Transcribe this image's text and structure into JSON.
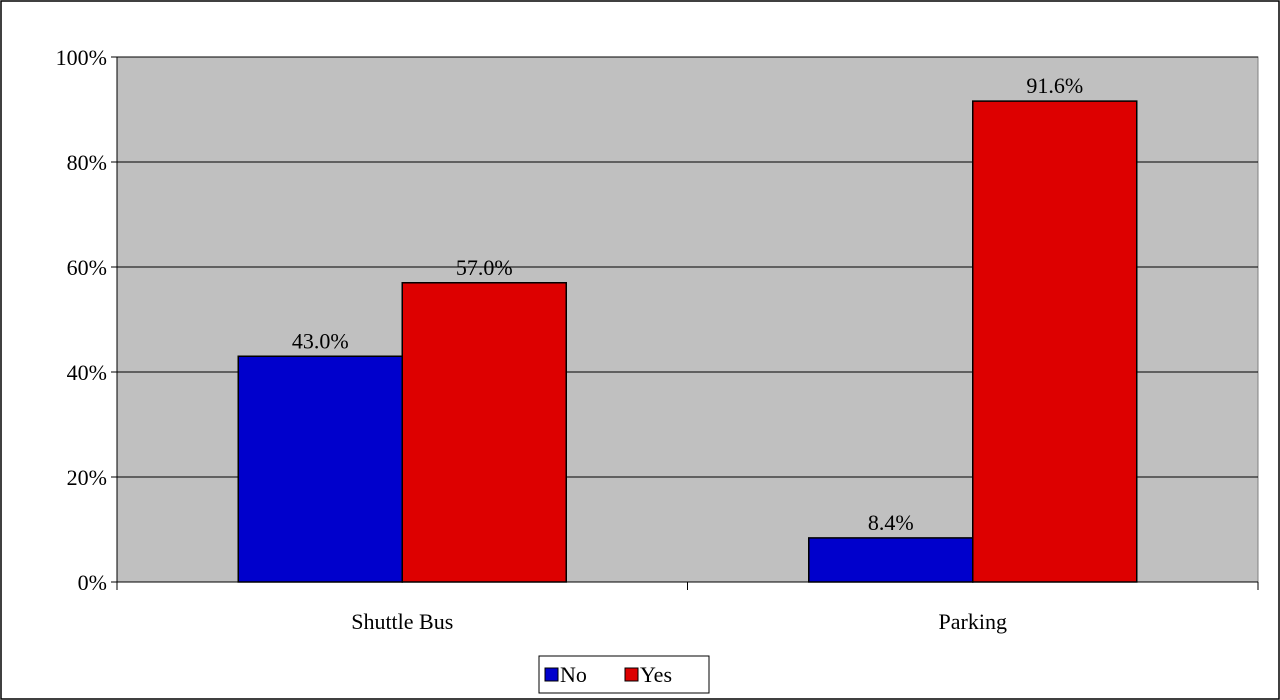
{
  "chart_data": {
    "type": "bar",
    "categories": [
      "Shuttle Bus",
      "Parking"
    ],
    "series": [
      {
        "name": "No",
        "values": [
          43.0,
          8.4
        ],
        "labels": [
          "43.0%",
          "8.4%"
        ],
        "color": "#0000CC"
      },
      {
        "name": "Yes",
        "values": [
          57.0,
          91.6
        ],
        "labels": [
          "57.0%",
          "91.6%"
        ],
        "color": "#DD0000"
      }
    ],
    "ylim": [
      0,
      100
    ],
    "yticks": [
      0,
      20,
      40,
      60,
      80,
      100
    ],
    "ytick_labels": [
      "0%",
      "20%",
      "40%",
      "60%",
      "80%",
      "100%"
    ],
    "grid": true,
    "legend_position": "bottom",
    "plot_background": "#C0C0C0",
    "title": "",
    "xlabel": "",
    "ylabel": ""
  }
}
